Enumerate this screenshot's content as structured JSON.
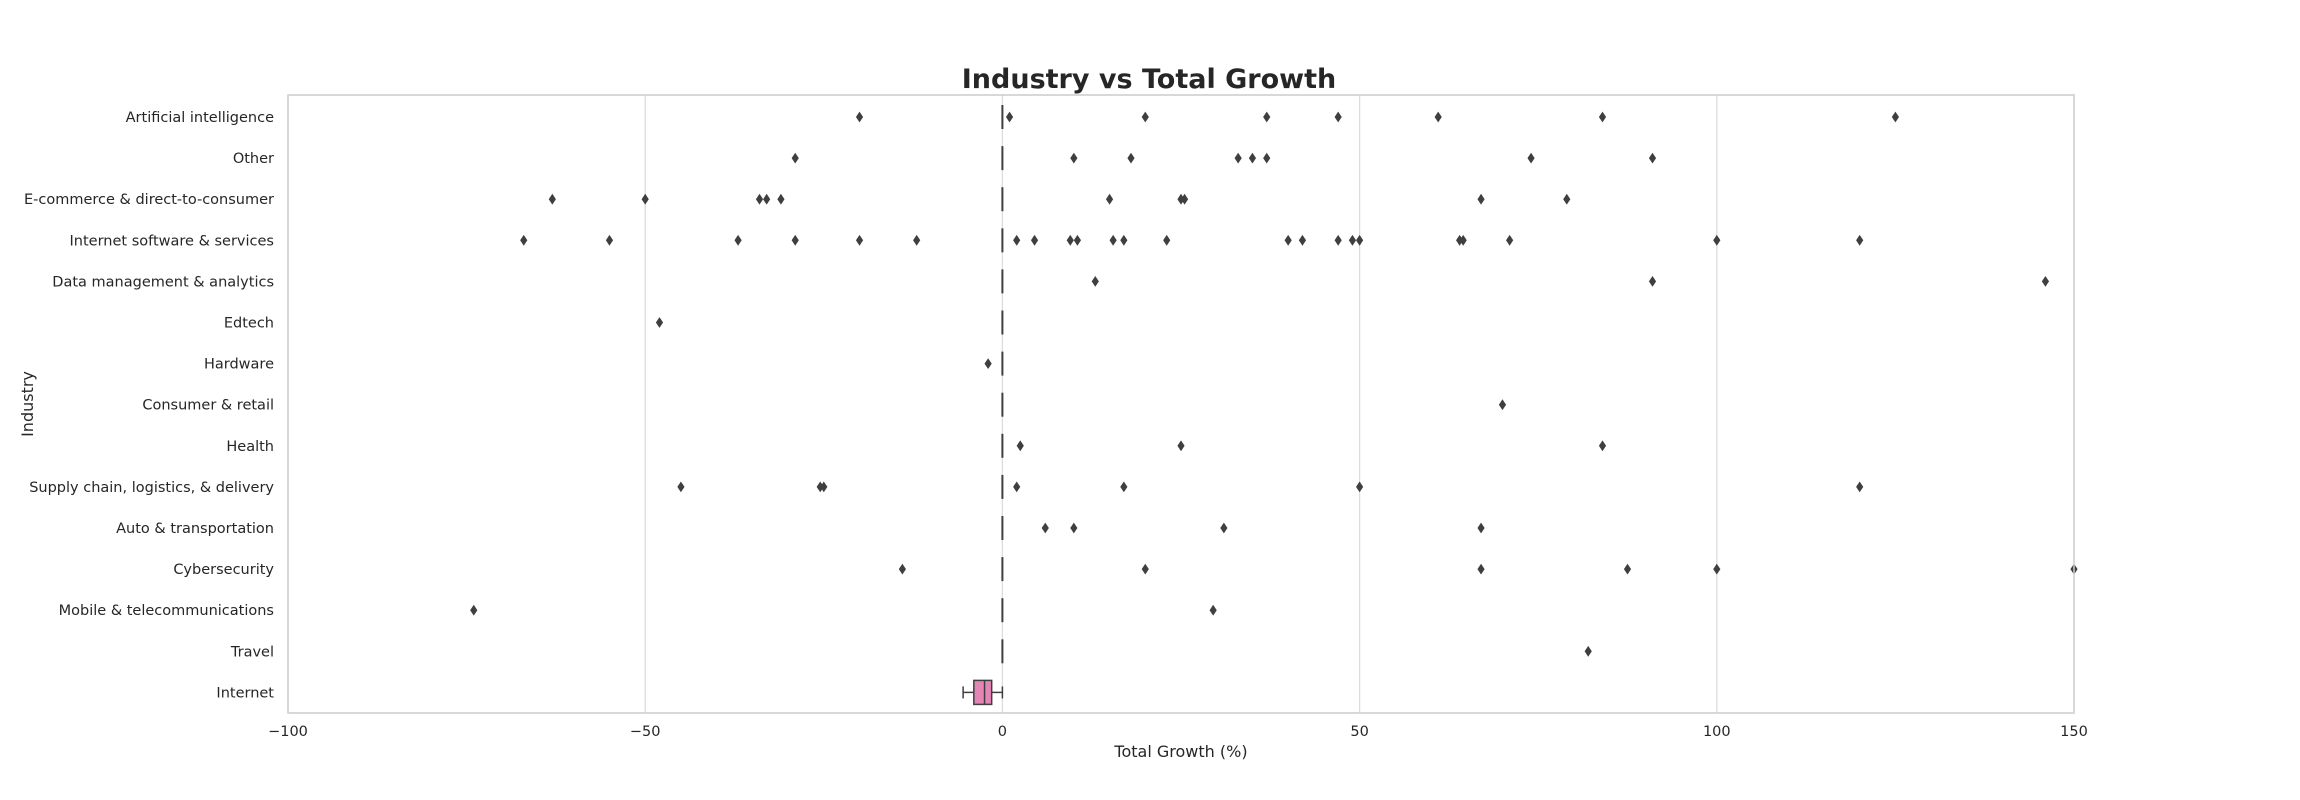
{
  "chart_data": {
    "type": "box",
    "orientation": "horizontal",
    "title": "Industry vs Total Growth",
    "xlabel": "Total Growth (%)",
    "ylabel": "Industry",
    "xlim": [
      -100,
      150
    ],
    "xticks": [
      -100,
      -50,
      0,
      50,
      100,
      150
    ],
    "xtick_labels": [
      "−100",
      "−50",
      "0",
      "50",
      "100",
      "150"
    ],
    "grid": "vertical",
    "colors": {
      "box_fill": "#e585b6",
      "line": "#3f3f3f",
      "grid": "#dcdcdc",
      "frame": "#cccccc",
      "outlier": "#3f3f3f"
    },
    "categories": [
      "Artificial intelligence",
      "Other",
      "E-commerce & direct-to-consumer",
      "Internet software & services",
      "Data management & analytics",
      "Edtech",
      "Hardware",
      "Consumer & retail",
      "Health",
      "Supply chain, logistics, & delivery",
      "Auto & transportation",
      "Cybersecurity",
      "Mobile & telecommunications",
      "Travel",
      "Internet"
    ],
    "boxes": [
      {
        "category": "Artificial intelligence",
        "q1": 0,
        "median": 0,
        "q3": 0,
        "whisker_low": 0,
        "whisker_high": 0,
        "outliers": [
          -20,
          1,
          20,
          37,
          47,
          61,
          84,
          125
        ]
      },
      {
        "category": "Other",
        "q1": 0,
        "median": 0,
        "q3": 0,
        "whisker_low": 0,
        "whisker_high": 0,
        "outliers": [
          -29,
          10,
          18,
          33,
          35,
          37,
          74,
          91
        ]
      },
      {
        "category": "E-commerce & direct-to-consumer",
        "q1": 0,
        "median": 0,
        "q3": 0,
        "whisker_low": 0,
        "whisker_high": 0,
        "outliers": [
          -63,
          -50,
          -34,
          -33,
          -31,
          15,
          25,
          25.5,
          67,
          79
        ]
      },
      {
        "category": "Internet software & services",
        "q1": 0,
        "median": 0,
        "q3": 0,
        "whisker_low": 0,
        "whisker_high": 0,
        "outliers": [
          -67,
          -55,
          -37,
          -29,
          -20,
          -12,
          2,
          4.5,
          9.5,
          10.5,
          15.5,
          17,
          23,
          40,
          42,
          47,
          49,
          50,
          64,
          64.5,
          71,
          100,
          120
        ]
      },
      {
        "category": "Data management & analytics",
        "q1": 0,
        "median": 0,
        "q3": 0,
        "whisker_low": 0,
        "whisker_high": 0,
        "outliers": [
          13,
          91,
          146
        ]
      },
      {
        "category": "Edtech",
        "q1": 0,
        "median": 0,
        "q3": 0,
        "whisker_low": 0,
        "whisker_high": 0,
        "outliers": [
          -48
        ]
      },
      {
        "category": "Hardware",
        "q1": 0,
        "median": 0,
        "q3": 0,
        "whisker_low": 0,
        "whisker_high": 0,
        "outliers": [
          -2
        ]
      },
      {
        "category": "Consumer & retail",
        "q1": 0,
        "median": 0,
        "q3": 0,
        "whisker_low": 0,
        "whisker_high": 0,
        "outliers": [
          70
        ]
      },
      {
        "category": "Health",
        "q1": 0,
        "median": 0,
        "q3": 0,
        "whisker_low": 0,
        "whisker_high": 0,
        "outliers": [
          2.5,
          25,
          84
        ]
      },
      {
        "category": "Supply chain, logistics, & delivery",
        "q1": 0,
        "median": 0,
        "q3": 0,
        "whisker_low": 0,
        "whisker_high": 0,
        "outliers": [
          -45,
          -25.5,
          -25,
          2,
          17,
          50,
          120
        ]
      },
      {
        "category": "Auto & transportation",
        "q1": 0,
        "median": 0,
        "q3": 0,
        "whisker_low": 0,
        "whisker_high": 0,
        "outliers": [
          6,
          10,
          31,
          67
        ]
      },
      {
        "category": "Cybersecurity",
        "q1": 0,
        "median": 0,
        "q3": 0,
        "whisker_low": 0,
        "whisker_high": 0,
        "outliers": [
          -14,
          20,
          67,
          87.5,
          100,
          150
        ]
      },
      {
        "category": "Mobile & telecommunications",
        "q1": 0,
        "median": 0,
        "q3": 0,
        "whisker_low": 0,
        "whisker_high": 0,
        "outliers": [
          -74,
          29.5
        ]
      },
      {
        "category": "Travel",
        "q1": 0,
        "median": 0,
        "q3": 0,
        "whisker_low": 0,
        "whisker_high": 0,
        "outliers": [
          82
        ]
      },
      {
        "category": "Internet",
        "q1": -4,
        "median": -2.5,
        "q3": -1.5,
        "whisker_low": -5.5,
        "whisker_high": 0,
        "outliers": []
      }
    ]
  }
}
